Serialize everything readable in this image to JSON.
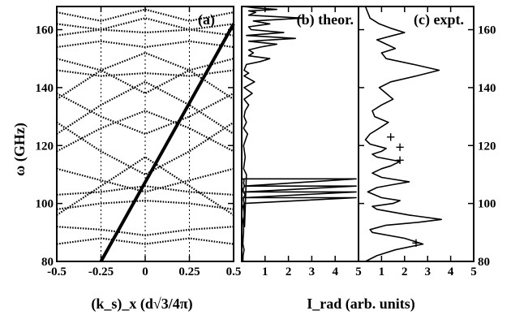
{
  "chart_data": [
    {
      "panel": "a",
      "type": "line",
      "title": "(a)",
      "xlabel": "(k_s)_x (d√3/4π)",
      "ylabel": "ω (GHz)",
      "xlim": [
        -0.5,
        0.5
      ],
      "ylim": [
        80,
        168
      ],
      "x_ticks": [
        "-0.5",
        "-0.25",
        "0",
        "0.25",
        "0.5"
      ],
      "y_ticks": [
        "80",
        "100",
        "120",
        "140",
        "160"
      ],
      "series": [
        {
          "style": "thick-solid",
          "x": [
            -0.25,
            0.5
          ],
          "y": [
            80,
            162
          ]
        },
        {
          "style": "dotted",
          "x": [
            -0.5,
            -0.25,
            0,
            0.25,
            0.5
          ],
          "y": [
            86,
            88,
            86,
            88,
            86
          ]
        },
        {
          "style": "dotted",
          "x": [
            -0.5,
            -0.25,
            0,
            0.25,
            0.5
          ],
          "y": [
            92,
            91,
            89,
            91,
            92
          ]
        },
        {
          "style": "dotted",
          "x": [
            -0.5,
            -0.25,
            0,
            0.25,
            0.5
          ],
          "y": [
            98,
            100,
            101,
            100,
            98
          ]
        },
        {
          "style": "dotted",
          "x": [
            -0.5,
            -0.25,
            0,
            0.25,
            0.5
          ],
          "y": [
            103,
            104,
            106,
            104,
            103
          ]
        },
        {
          "style": "dotted",
          "x": [
            -0.5,
            -0.25,
            0,
            0.25,
            0.5
          ],
          "y": [
            112,
            108,
            104,
            108,
            112
          ]
        },
        {
          "style": "dotted",
          "x": [
            -0.5,
            -0.25,
            0,
            0.25,
            0.5
          ],
          "y": [
            96,
            106,
            116,
            106,
            96
          ]
        },
        {
          "style": "dotted",
          "x": [
            -0.5,
            -0.25,
            0,
            0.25,
            0.5
          ],
          "y": [
            128,
            118,
            110,
            118,
            128
          ]
        },
        {
          "style": "dotted",
          "x": [
            -0.5,
            -0.25,
            0,
            0.25,
            0.5
          ],
          "y": [
            118,
            126,
            132,
            126,
            118
          ]
        },
        {
          "style": "dotted",
          "x": [
            -0.5,
            -0.25,
            0,
            0.25,
            0.5
          ],
          "y": [
            138,
            130,
            124,
            130,
            138
          ]
        },
        {
          "style": "dotted",
          "x": [
            -0.5,
            -0.25,
            0,
            0.25,
            0.5
          ],
          "y": [
            124,
            134,
            142,
            134,
            124
          ]
        },
        {
          "style": "dotted",
          "x": [
            -0.5,
            -0.25,
            0,
            0.25,
            0.5
          ],
          "y": [
            146,
            144,
            145,
            144,
            146
          ]
        },
        {
          "style": "dotted",
          "x": [
            -0.5,
            -0.25,
            0,
            0.25,
            0.5
          ],
          "y": [
            150,
            146,
            138,
            146,
            150
          ]
        },
        {
          "style": "dotted",
          "x": [
            -0.5,
            -0.25,
            0,
            0.25,
            0.5
          ],
          "y": [
            136,
            146,
            152,
            146,
            136
          ]
        },
        {
          "style": "dotted",
          "x": [
            -0.5,
            -0.25,
            0,
            0.25,
            0.5
          ],
          "y": [
            154,
            156,
            154,
            156,
            154
          ]
        },
        {
          "style": "dotted",
          "x": [
            -0.5,
            -0.25,
            0,
            0.25,
            0.5
          ],
          "y": [
            158,
            160,
            159,
            160,
            158
          ]
        },
        {
          "style": "dotted",
          "x": [
            -0.5,
            -0.25,
            0,
            0.25,
            0.5
          ],
          "y": [
            162,
            160,
            164,
            160,
            162
          ]
        },
        {
          "style": "dotted",
          "x": [
            -0.5,
            -0.25,
            0,
            0.25,
            0.5
          ],
          "y": [
            166,
            163,
            167,
            163,
            166
          ]
        }
      ]
    },
    {
      "panel": "b",
      "type": "line",
      "title": "(b) theor.",
      "xlabel": "I_rad (arb. units)",
      "xlim": [
        0,
        5
      ],
      "ylim": [
        80,
        168
      ],
      "x_ticks": [
        "1",
        "2",
        "3",
        "4",
        "5"
      ],
      "series": [
        {
          "x": [
            0.05,
            0.06,
            0.1,
            0.05,
            0.06,
            0.08,
            0.08,
            0.06,
            0.08,
            0.12,
            0.08,
            0.06,
            0.1,
            0.08,
            0.07,
            0.15,
            0.07,
            0.06,
            0.12,
            0.08,
            0.1,
            0.06,
            4.9,
            0.1,
            4.9,
            0.1,
            4.9,
            0.1,
            4.9,
            0.1,
            0.1,
            0.12,
            0.2,
            0.08,
            0.15,
            0.08,
            0.25,
            0.08,
            0.2,
            0.1,
            0.15,
            0.3,
            0.1,
            0.45,
            0.1,
            0.55,
            0.1,
            0.3,
            0.1,
            0.2,
            0.8,
            1.2,
            0.3,
            0.5,
            0.3,
            0.8,
            1.5,
            0.3,
            2.3,
            0.2,
            1.8,
            0.4,
            0.3,
            1.2,
            0.5,
            2.6,
            0.3,
            0.6,
            0.3,
            1.5,
            0.6,
            0.1
          ],
          "y": [
            80,
            82,
            84,
            86,
            88,
            90,
            92,
            94,
            95,
            96,
            98,
            99,
            100,
            101,
            102,
            103,
            104,
            105,
            106,
            107,
            108,
            108.5,
            108.5,
            106,
            106,
            104,
            104,
            102,
            102,
            100,
            96,
            92,
            110,
            112,
            116,
            120,
            124,
            126,
            128,
            130,
            132,
            134,
            136,
            138,
            140,
            142,
            144,
            145,
            146,
            148,
            149,
            150,
            151,
            152,
            153,
            154,
            155,
            156,
            157,
            158,
            159,
            160,
            161,
            162,
            163,
            164,
            165,
            166,
            166.5,
            167,
            167.5,
            168
          ]
        }
      ]
    },
    {
      "panel": "c",
      "type": "line",
      "title": "(c) expt.",
      "xlim": [
        0,
        5
      ],
      "ylim": [
        80,
        168
      ],
      "x_ticks": [
        "1",
        "2",
        "3",
        "4",
        "5"
      ],
      "y_ticks": [
        "80",
        "100",
        "120",
        "140",
        "160"
      ],
      "series": [
        {
          "x": [
            0.3,
            0.8,
            1.6,
            2.8,
            2.0,
            0.6,
            0.5,
            1.2,
            2.6,
            3.6,
            2.2,
            0.8,
            0.6,
            1.5,
            1.8,
            1.0,
            0.4,
            0.8,
            1.5,
            2.2,
            1.0,
            0.6,
            1.0,
            1.4,
            1.8,
            0.8,
            0.6,
            1.0,
            1.2,
            0.5,
            0.3,
            0.5,
            0.9,
            1.3,
            0.7,
            0.6,
            1.0,
            1.5,
            1.2,
            0.9,
            1.4,
            2.5,
            3.5,
            2.4,
            1.2,
            1.0,
            1.6,
            1.2,
            0.8,
            1.5,
            2.0,
            1.4,
            0.9,
            0.5,
            0.3
          ],
          "y": [
            80,
            82,
            84,
            86,
            88,
            90,
            91,
            92.5,
            93.5,
            94.5,
            96,
            98,
            99,
            100,
            101,
            102,
            104,
            105.5,
            106.5,
            107.5,
            109,
            110.5,
            112,
            113,
            114.5,
            116,
            117,
            118,
            119,
            120.5,
            122,
            124,
            126,
            128,
            130,
            132,
            134,
            136,
            138,
            140,
            142,
            144,
            146,
            148,
            150,
            152,
            153.5,
            155,
            156.5,
            158,
            159,
            160.5,
            162,
            164,
            168
          ]
        }
      ],
      "markers": [
        {
          "symbol": "+",
          "x": 2.5,
          "y": 86.5
        },
        {
          "symbol": "+",
          "x": 1.8,
          "y": 115
        },
        {
          "symbol": "+",
          "x": 1.8,
          "y": 119.5
        },
        {
          "symbol": "+",
          "x": 1.4,
          "y": 123
        }
      ]
    }
  ]
}
